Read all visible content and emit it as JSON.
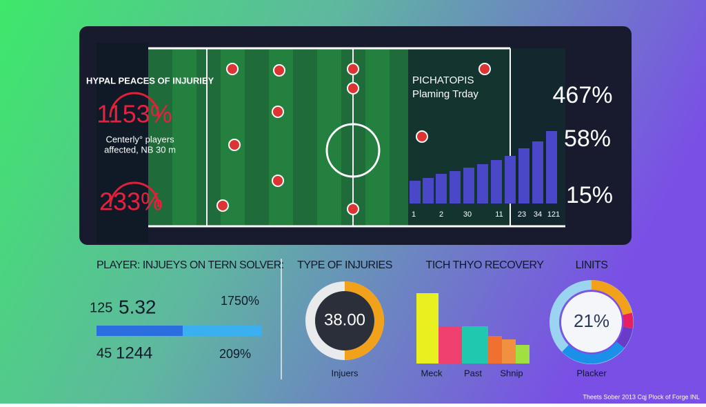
{
  "panel": {
    "left": {
      "title": "HYPAL PEACES OF INJURIEY",
      "stat_1": "1153%",
      "caption_1": "Centerly° players",
      "caption_2": "affected, NB 30 m",
      "stat_2": "233%"
    },
    "overlay": {
      "title_1": "PICHATOPIS",
      "title_2": "Plaming Trday",
      "axis_labels": [
        "1",
        "2",
        "30",
        "11",
        "23",
        "34",
        "121"
      ]
    },
    "right_stats": [
      "467%",
      "58%",
      "15%"
    ]
  },
  "players": {
    "title": "PLAYER: INJUEYS ON TERN SOLVER:",
    "row_1": {
      "small": "125",
      "big": "5.32",
      "right": "1750%"
    },
    "row_2": {
      "small": "45",
      "big": "1244",
      "right": "209%"
    }
  },
  "types": {
    "title": "TYPE OF INJURIES",
    "center": "38.00",
    "label": "Injuers"
  },
  "recovery": {
    "title": "TICH THYO RECOVERY",
    "labels": [
      "Meck",
      "Past",
      "Shnip"
    ]
  },
  "limits": {
    "title": "LINITS",
    "center": "21%",
    "label": "Placker"
  },
  "footer": "Theets Sober 2013 Cqj Plock of Forge INL"
}
